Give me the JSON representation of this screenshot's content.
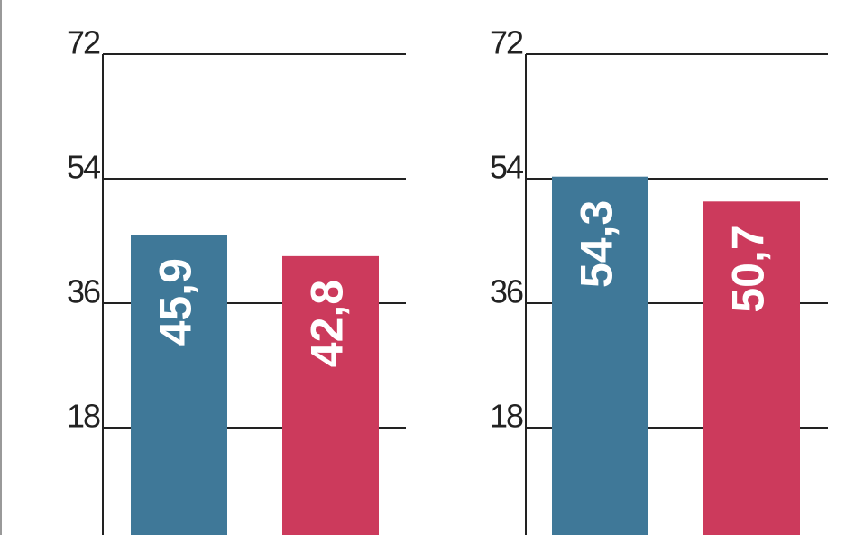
{
  "chart_data": [
    {
      "type": "bar",
      "categories": [
        null,
        null
      ],
      "values": [
        45.9,
        42.8
      ],
      "value_labels": [
        "45,9",
        "42,8"
      ],
      "colors": [
        "#3f7898",
        "#cc3a5c"
      ],
      "ylim": [
        0,
        72
      ],
      "yticks": [
        18,
        36,
        54,
        72
      ],
      "grid": true
    },
    {
      "type": "bar",
      "categories": [
        null,
        null
      ],
      "values": [
        54.3,
        50.7
      ],
      "value_labels": [
        "54,3",
        "50,7"
      ],
      "colors": [
        "#3f7898",
        "#cc3a5c"
      ],
      "ylim": [
        0,
        72
      ],
      "yticks": [
        18,
        36,
        54,
        72
      ],
      "grid": true
    }
  ]
}
